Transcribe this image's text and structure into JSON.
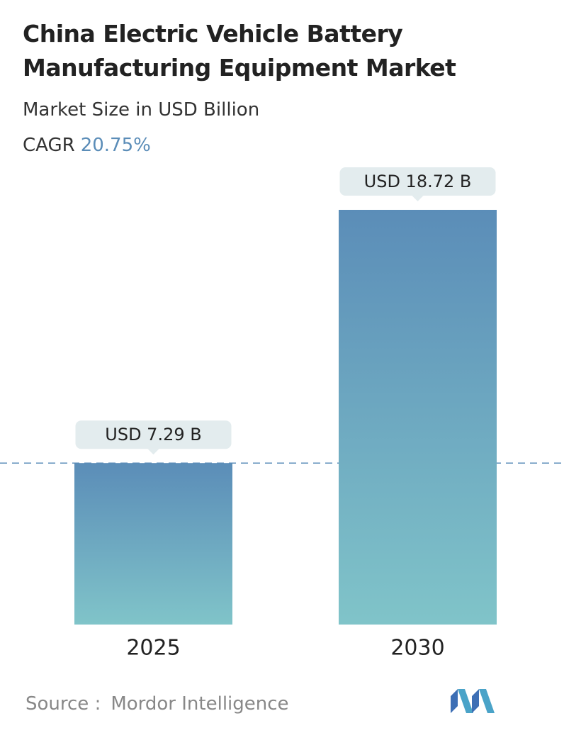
{
  "chart_data": {
    "type": "bar",
    "title": "China Electric Vehicle Battery Manufacturing Equipment Market",
    "subtitle": "Market Size in USD Billion",
    "cagr_label": "CAGR",
    "cagr": "20.75%",
    "categories": [
      "2025",
      "2030"
    ],
    "values": [
      7.29,
      18.72
    ],
    "value_labels": [
      "USD 7.29 B",
      "USD 18.72 B"
    ],
    "color_top": "#5b8db8",
    "color_bottom": "#80c4c9",
    "source_label": "Source :",
    "source": "Mordor Intelligence"
  }
}
